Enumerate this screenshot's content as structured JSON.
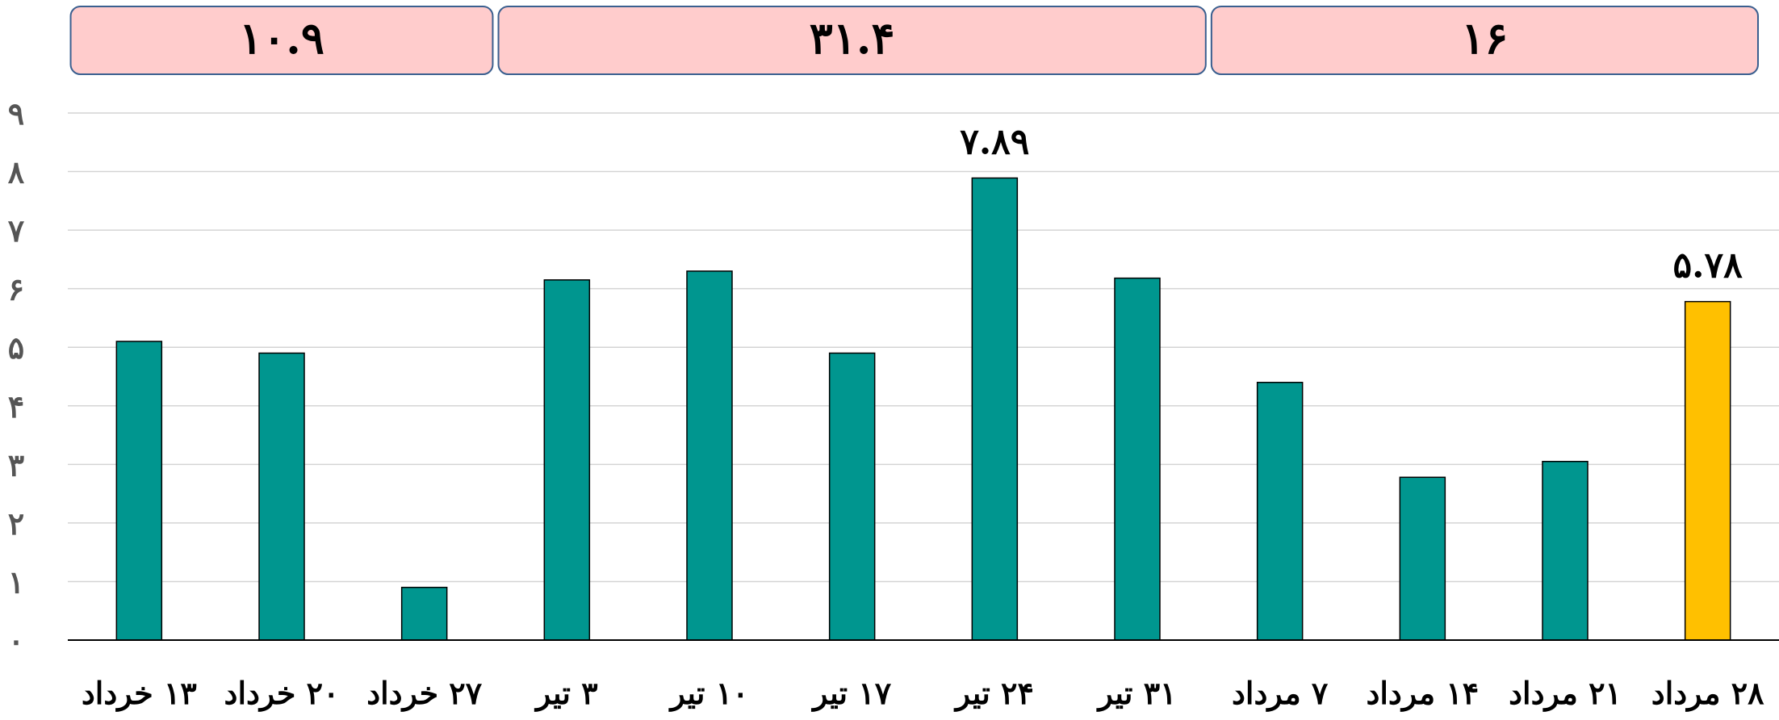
{
  "chart_data": {
    "type": "bar",
    "categories": [
      "۱۳ خرداد",
      "۲۰ خرداد",
      "۲۷ خرداد",
      "۳ تیر",
      "۱۰ تیر",
      "۱۷ تیر",
      "۲۴ تیر",
      "۳۱ تیر",
      "۷ مرداد",
      "۱۴ مرداد",
      "۲۱ مرداد",
      "۲۸ مرداد"
    ],
    "values": [
      5.1,
      4.9,
      0.9,
      6.15,
      6.3,
      4.9,
      7.89,
      6.18,
      4.4,
      2.78,
      3.05,
      5.78
    ],
    "ylim": [
      0,
      9
    ],
    "yticks": [
      "۰",
      "۱",
      "۲",
      "۳",
      "۴",
      "۵",
      "۶",
      "۷",
      "۸",
      "۹"
    ],
    "grid": true,
    "bar_color": "#00968f",
    "highlight_color": "#ffc000",
    "highlight_index": 11,
    "data_labels": [
      {
        "index": 6,
        "text": "۷.۸۹"
      },
      {
        "index": 11,
        "text": "۵.۷۸"
      }
    ],
    "group_totals": [
      {
        "text": "۱۰.۹",
        "first": 0,
        "last": 2
      },
      {
        "text": "۳۱.۴",
        "first": 3,
        "last": 7
      },
      {
        "text": "۱۶",
        "first": 8,
        "last": 11
      }
    ],
    "group_box_color": "#ffcccc",
    "group_box_border": "#3a5f8f"
  }
}
